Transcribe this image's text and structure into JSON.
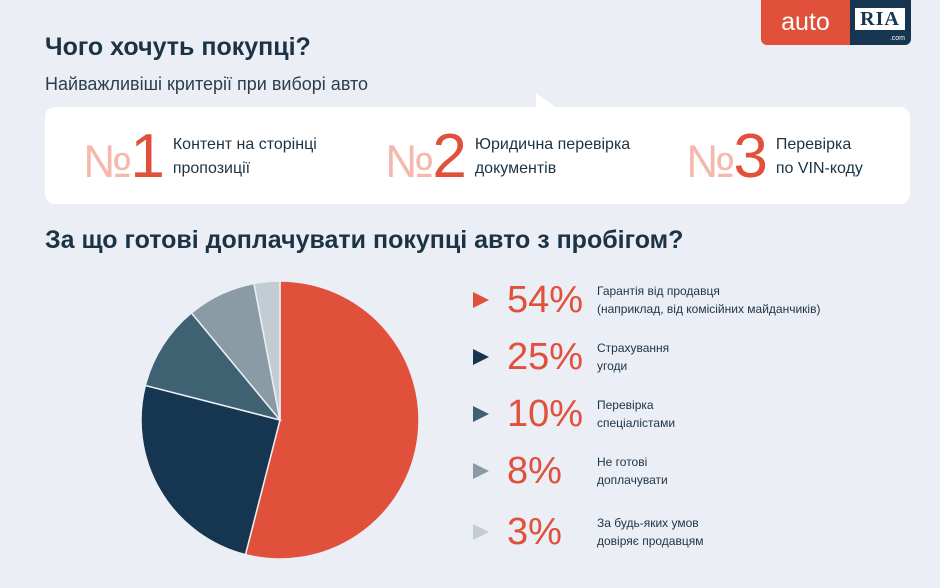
{
  "logo": {
    "part1": "auto",
    "part2": "RIA",
    "part3": ".com"
  },
  "header": {
    "title": "Чого хочуть покупці?",
    "subtitle": "Найважливіші критерії при виборі авто"
  },
  "criteria": [
    {
      "rank_prefix": "№",
      "rank": "1",
      "text": "Контент на сторінці\nпропозиції"
    },
    {
      "rank_prefix": "№",
      "rank": "2",
      "text": "Юридична перевірка\nдокументів"
    },
    {
      "rank_prefix": "№",
      "rank": "3",
      "text": "Перевірка\nпо VIN-коду"
    }
  ],
  "chart_title": "За що готові доплачувати покупці авто з пробігом?",
  "chart_data": {
    "type": "pie",
    "title": "За що готові доплачувати покупці авто з пробігом?",
    "slices": [
      {
        "label": "Гарантія від продавця\n(наприклад, від комісійних майданчиків)",
        "value": 54,
        "display": "54%",
        "color": "#e0503a"
      },
      {
        "label": "Страхування\nугоди",
        "value": 25,
        "display": "25%",
        "color": "#163550"
      },
      {
        "label": "Перевірка\nспеціалістами",
        "value": 10,
        "display": "10%",
        "color": "#3f6272"
      },
      {
        "label": "Не готові\nдоплачувати",
        "value": 8,
        "display": "8%",
        "color": "#8a9ba6"
      },
      {
        "label": "За будь-яких умов\nдовіряє продавцям",
        "value": 3,
        "display": "3%",
        "color": "#c3ccd2"
      }
    ]
  }
}
